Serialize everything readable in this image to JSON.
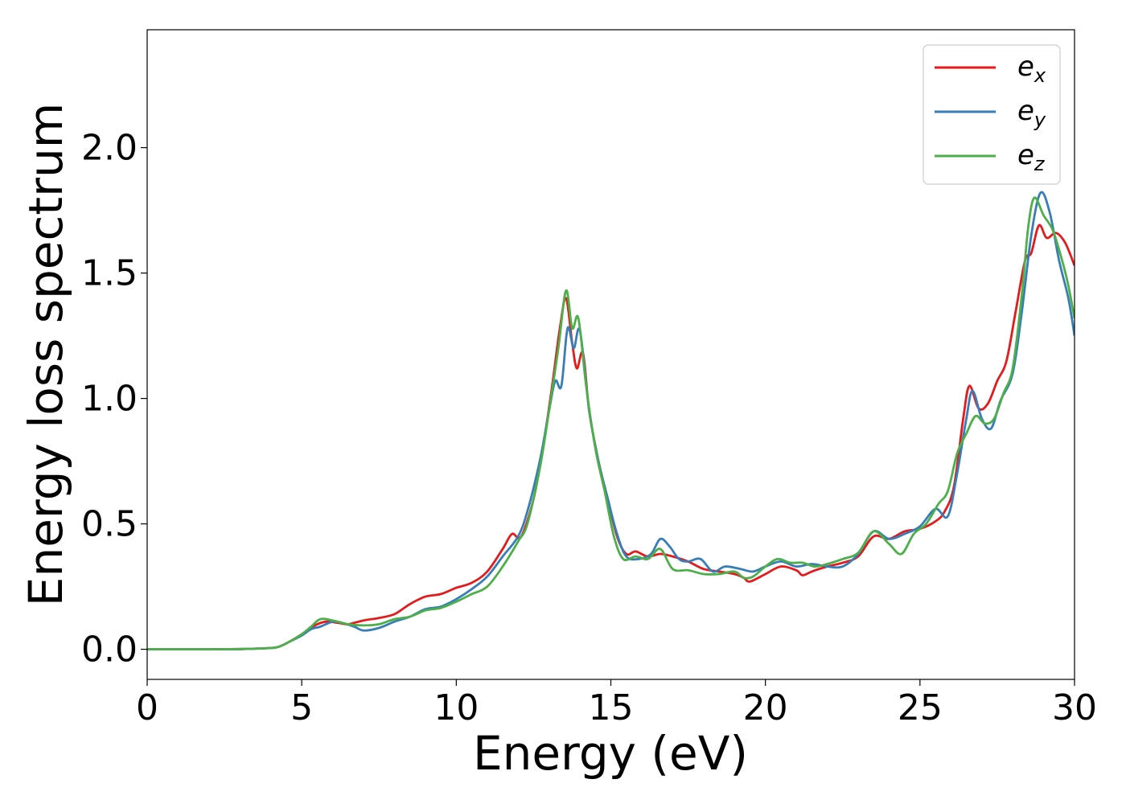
{
  "chart_data": {
    "type": "line",
    "xlabel": "Energy (eV)",
    "ylabel": "Energy loss spectrum",
    "xlim": [
      0,
      30
    ],
    "ylim": [
      -0.12,
      2.47
    ],
    "x_ticks": [
      0,
      5,
      10,
      15,
      20,
      25,
      30
    ],
    "x_tick_labels": [
      "0",
      "5",
      "10",
      "15",
      "20",
      "25",
      "30"
    ],
    "y_ticks": [
      0.0,
      0.5,
      1.0,
      1.5,
      2.0
    ],
    "y_tick_labels": [
      "0.0",
      "0.5",
      "1.0",
      "1.5",
      "2.0"
    ],
    "grid": false,
    "legend_position": "top-right",
    "series": [
      {
        "name": "e_x",
        "label_base": "e",
        "label_sub": "x",
        "color": "#e41a1c",
        "points": [
          [
            0,
            0
          ],
          [
            1,
            0
          ],
          [
            2,
            0
          ],
          [
            3,
            0.001
          ],
          [
            4,
            0.005
          ],
          [
            4.3,
            0.012
          ],
          [
            4.6,
            0.03
          ],
          [
            5,
            0.06
          ],
          [
            5.3,
            0.085
          ],
          [
            5.5,
            0.1
          ],
          [
            5.8,
            0.11
          ],
          [
            6.2,
            0.105
          ],
          [
            6.5,
            0.1
          ],
          [
            7,
            0.115
          ],
          [
            7.5,
            0.125
          ],
          [
            8,
            0.14
          ],
          [
            8.5,
            0.18
          ],
          [
            9,
            0.21
          ],
          [
            9.5,
            0.22
          ],
          [
            10,
            0.245
          ],
          [
            10.5,
            0.265
          ],
          [
            11,
            0.31
          ],
          [
            11.5,
            0.4
          ],
          [
            11.8,
            0.46
          ],
          [
            12.1,
            0.45
          ],
          [
            12.5,
            0.6
          ],
          [
            12.8,
            0.8
          ],
          [
            13.1,
            1.05
          ],
          [
            13.35,
            1.28
          ],
          [
            13.55,
            1.4
          ],
          [
            13.75,
            1.22
          ],
          [
            13.9,
            1.12
          ],
          [
            14.1,
            1.18
          ],
          [
            14.3,
            0.95
          ],
          [
            14.6,
            0.75
          ],
          [
            14.9,
            0.6
          ],
          [
            15.2,
            0.45
          ],
          [
            15.5,
            0.38
          ],
          [
            15.8,
            0.39
          ],
          [
            16.2,
            0.37
          ],
          [
            16.6,
            0.38
          ],
          [
            17,
            0.37
          ],
          [
            17.5,
            0.35
          ],
          [
            18,
            0.32
          ],
          [
            18.5,
            0.31
          ],
          [
            19,
            0.3
          ],
          [
            19.3,
            0.285
          ],
          [
            19.5,
            0.27
          ],
          [
            20,
            0.3
          ],
          [
            20.5,
            0.33
          ],
          [
            21,
            0.315
          ],
          [
            21.2,
            0.295
          ],
          [
            21.5,
            0.31
          ],
          [
            22,
            0.33
          ],
          [
            22.5,
            0.345
          ],
          [
            23,
            0.37
          ],
          [
            23.5,
            0.45
          ],
          [
            24,
            0.44
          ],
          [
            24.5,
            0.47
          ],
          [
            25,
            0.48
          ],
          [
            25.5,
            0.51
          ],
          [
            25.8,
            0.55
          ],
          [
            26.1,
            0.65
          ],
          [
            26.4,
            0.92
          ],
          [
            26.6,
            1.05
          ],
          [
            26.9,
            0.96
          ],
          [
            27.2,
            0.98
          ],
          [
            27.5,
            1.07
          ],
          [
            27.8,
            1.15
          ],
          [
            28.1,
            1.35
          ],
          [
            28.4,
            1.55
          ],
          [
            28.6,
            1.58
          ],
          [
            28.85,
            1.69
          ],
          [
            29.1,
            1.64
          ],
          [
            29.4,
            1.66
          ],
          [
            29.7,
            1.62
          ],
          [
            30,
            1.53
          ]
        ]
      },
      {
        "name": "e_y",
        "label_base": "e",
        "label_sub": "y",
        "color": "#377eb8",
        "points": [
          [
            0,
            0
          ],
          [
            1,
            0
          ],
          [
            2,
            0
          ],
          [
            3,
            0.001
          ],
          [
            4,
            0.005
          ],
          [
            4.3,
            0.012
          ],
          [
            4.6,
            0.03
          ],
          [
            5,
            0.055
          ],
          [
            5.3,
            0.08
          ],
          [
            5.6,
            0.09
          ],
          [
            6,
            0.11
          ],
          [
            6.3,
            0.105
          ],
          [
            6.7,
            0.09
          ],
          [
            7,
            0.075
          ],
          [
            7.5,
            0.085
          ],
          [
            8,
            0.11
          ],
          [
            8.5,
            0.13
          ],
          [
            9,
            0.16
          ],
          [
            9.5,
            0.17
          ],
          [
            10,
            0.2
          ],
          [
            10.5,
            0.24
          ],
          [
            11,
            0.29
          ],
          [
            11.5,
            0.37
          ],
          [
            12,
            0.45
          ],
          [
            12.3,
            0.55
          ],
          [
            12.7,
            0.75
          ],
          [
            13,
            0.95
          ],
          [
            13.2,
            1.07
          ],
          [
            13.4,
            1.05
          ],
          [
            13.6,
            1.28
          ],
          [
            13.8,
            1.2
          ],
          [
            14,
            1.27
          ],
          [
            14.3,
            0.95
          ],
          [
            14.6,
            0.75
          ],
          [
            14.9,
            0.6
          ],
          [
            15.2,
            0.46
          ],
          [
            15.5,
            0.37
          ],
          [
            15.9,
            0.36
          ],
          [
            16.3,
            0.38
          ],
          [
            16.6,
            0.44
          ],
          [
            16.9,
            0.41
          ],
          [
            17.2,
            0.36
          ],
          [
            17.5,
            0.35
          ],
          [
            17.9,
            0.36
          ],
          [
            18.3,
            0.31
          ],
          [
            18.7,
            0.33
          ],
          [
            19.2,
            0.32
          ],
          [
            19.6,
            0.31
          ],
          [
            20,
            0.33
          ],
          [
            20.5,
            0.35
          ],
          [
            21,
            0.33
          ],
          [
            21.5,
            0.34
          ],
          [
            22,
            0.33
          ],
          [
            22.5,
            0.33
          ],
          [
            23,
            0.38
          ],
          [
            23.5,
            0.47
          ],
          [
            24,
            0.44
          ],
          [
            24.5,
            0.46
          ],
          [
            25,
            0.49
          ],
          [
            25.5,
            0.56
          ],
          [
            25.9,
            0.53
          ],
          [
            26.2,
            0.7
          ],
          [
            26.5,
            0.92
          ],
          [
            26.7,
            1.03
          ],
          [
            27,
            0.92
          ],
          [
            27.3,
            0.88
          ],
          [
            27.6,
            0.99
          ],
          [
            28,
            1.1
          ],
          [
            28.3,
            1.35
          ],
          [
            28.6,
            1.65
          ],
          [
            28.9,
            1.82
          ],
          [
            29.2,
            1.74
          ],
          [
            29.5,
            1.55
          ],
          [
            29.8,
            1.4
          ],
          [
            30,
            1.25
          ]
        ]
      },
      {
        "name": "e_z",
        "label_base": "e",
        "label_sub": "z",
        "color": "#4daf4a",
        "points": [
          [
            0,
            0
          ],
          [
            1,
            0
          ],
          [
            2,
            0
          ],
          [
            3,
            0.001
          ],
          [
            4,
            0.005
          ],
          [
            4.3,
            0.012
          ],
          [
            4.6,
            0.03
          ],
          [
            5,
            0.06
          ],
          [
            5.3,
            0.09
          ],
          [
            5.6,
            0.12
          ],
          [
            6,
            0.115
          ],
          [
            6.5,
            0.1
          ],
          [
            7,
            0.095
          ],
          [
            7.5,
            0.1
          ],
          [
            8,
            0.12
          ],
          [
            8.5,
            0.13
          ],
          [
            9,
            0.155
          ],
          [
            9.5,
            0.165
          ],
          [
            10,
            0.19
          ],
          [
            10.5,
            0.22
          ],
          [
            11,
            0.25
          ],
          [
            11.5,
            0.33
          ],
          [
            12,
            0.43
          ],
          [
            12.3,
            0.5
          ],
          [
            12.7,
            0.72
          ],
          [
            13,
            0.95
          ],
          [
            13.3,
            1.2
          ],
          [
            13.55,
            1.43
          ],
          [
            13.75,
            1.28
          ],
          [
            13.95,
            1.32
          ],
          [
            14.2,
            1.05
          ],
          [
            14.5,
            0.8
          ],
          [
            14.8,
            0.63
          ],
          [
            15.1,
            0.45
          ],
          [
            15.4,
            0.36
          ],
          [
            15.8,
            0.37
          ],
          [
            16.2,
            0.36
          ],
          [
            16.6,
            0.4
          ],
          [
            17,
            0.32
          ],
          [
            17.5,
            0.315
          ],
          [
            18,
            0.3
          ],
          [
            18.5,
            0.3
          ],
          [
            19,
            0.31
          ],
          [
            19.3,
            0.285
          ],
          [
            19.6,
            0.29
          ],
          [
            20,
            0.33
          ],
          [
            20.4,
            0.36
          ],
          [
            20.8,
            0.345
          ],
          [
            21.2,
            0.345
          ],
          [
            21.6,
            0.33
          ],
          [
            22,
            0.34
          ],
          [
            22.5,
            0.36
          ],
          [
            23,
            0.385
          ],
          [
            23.5,
            0.47
          ],
          [
            24,
            0.42
          ],
          [
            24.4,
            0.38
          ],
          [
            24.8,
            0.46
          ],
          [
            25.2,
            0.5
          ],
          [
            25.6,
            0.58
          ],
          [
            25.9,
            0.63
          ],
          [
            26.2,
            0.78
          ],
          [
            26.5,
            0.86
          ],
          [
            26.8,
            0.93
          ],
          [
            27.1,
            0.9
          ],
          [
            27.4,
            0.92
          ],
          [
            27.7,
            1.02
          ],
          [
            28,
            1.12
          ],
          [
            28.3,
            1.42
          ],
          [
            28.5,
            1.68
          ],
          [
            28.7,
            1.8
          ],
          [
            29,
            1.73
          ],
          [
            29.3,
            1.67
          ],
          [
            29.6,
            1.55
          ],
          [
            29.8,
            1.45
          ],
          [
            30,
            1.32
          ]
        ]
      }
    ]
  }
}
